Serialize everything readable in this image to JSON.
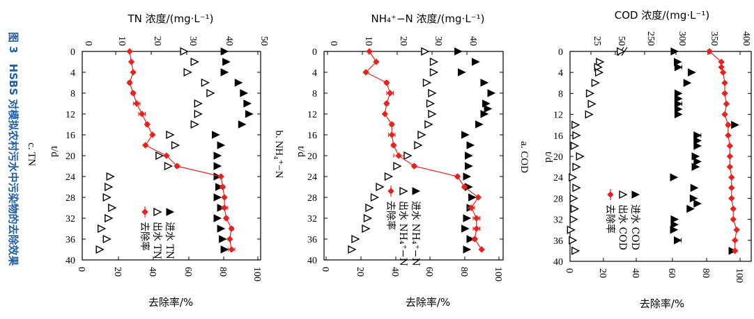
{
  "figure": {
    "caption": "图 3　HSBS 对模拟农村污水中污染物的去除效果"
  },
  "chart_data": [
    {
      "type": "line",
      "panel": "a. COD",
      "x_label": "t/d",
      "y_top_label": "COD 浓度/(mg·L⁻¹)",
      "y_bottom_label": "去除率/%",
      "x_ticks": [
        0,
        4,
        8,
        12,
        16,
        20,
        24,
        28,
        32,
        36,
        40
      ],
      "top_ticks": [
        "25",
        "50",
        "250",
        "300",
        "350",
        "400"
      ],
      "bottom_ticks": [
        "0",
        "20",
        "40",
        "60",
        "80",
        "100"
      ],
      "xlim": [
        0,
        40
      ],
      "removal_lim": [
        0,
        100
      ],
      "top_axis_break": true,
      "legend": [
        "进水 COD",
        "出水 COD",
        "去除率"
      ],
      "series": [
        {
          "name": "进水 COD",
          "marker": "filled-triangle",
          "x": [
            0,
            2,
            3,
            4,
            6,
            8,
            9,
            10,
            11,
            12,
            14,
            16,
            17,
            18,
            20,
            21,
            22,
            24,
            26,
            28,
            29,
            30,
            32,
            33,
            34,
            36,
            38
          ],
          "y": [
            297,
            302,
            303,
            324,
            317,
            303,
            303,
            303,
            303,
            303,
            392,
            333,
            333,
            333,
            330,
            333,
            330,
            296,
            328,
            327,
            333,
            322,
            297,
            297,
            296,
            302,
            388
          ]
        },
        {
          "name": "出水 COD",
          "marker": "open-triangle",
          "x": [
            0,
            2,
            3,
            4,
            6,
            8,
            10,
            12,
            14,
            16,
            18,
            20,
            22,
            24,
            26,
            28,
            30,
            32,
            34,
            36,
            38
          ],
          "y": [
            56,
            33,
            31,
            32,
            28,
            22,
            24,
            21,
            6,
            7,
            5,
            11,
            7,
            3,
            7,
            4,
            5,
            4,
            1,
            3,
            6
          ]
        },
        {
          "name": "去除率",
          "marker": "filled-diamond",
          "x": [
            0,
            2,
            3,
            4,
            6,
            8,
            10,
            12,
            14,
            16,
            18,
            20,
            22,
            24,
            26,
            28,
            30,
            32,
            34,
            36,
            38
          ],
          "y": [
            82,
            89,
            89,
            90,
            91,
            91,
            92,
            91,
            93,
            93,
            94,
            94,
            94,
            95,
            95,
            95,
            96,
            96,
            98,
            97,
            97
          ],
          "err": [
            1,
            0,
            0,
            0,
            0,
            0,
            0,
            0,
            1,
            0,
            0,
            0,
            0,
            0,
            0,
            0,
            0,
            0,
            0,
            0,
            0
          ]
        }
      ]
    },
    {
      "type": "line",
      "panel": "b. NH₄⁺−N",
      "x_label": "t/d",
      "y_top_label": "NH₄⁺−N 浓度/(mg·L⁻¹)",
      "y_bottom_label": "去除率/%",
      "x_ticks": [
        0,
        4,
        8,
        12,
        16,
        20,
        24,
        28,
        32,
        36,
        40
      ],
      "top_ticks": [
        "0",
        "10",
        "20",
        "30",
        "40"
      ],
      "bottom_ticks": [
        "0",
        "20",
        "40",
        "60",
        "80",
        "100"
      ],
      "xlim": [
        0,
        40
      ],
      "top_lim": [
        0,
        48
      ],
      "removal_lim": [
        0,
        100
      ],
      "legend": [
        "进水 NH₄⁺−N",
        "出水 NH₄⁺−N",
        "去除率"
      ],
      "series": [
        {
          "name": "进水 NH₄⁺−N",
          "marker": "filled-triangle",
          "x": [
            0,
            2,
            4,
            6,
            8,
            10,
            11,
            12,
            14,
            16,
            18,
            20,
            22,
            24,
            26,
            28,
            30,
            32,
            34,
            36,
            38
          ],
          "y": [
            37.5,
            42.5,
            38.5,
            45,
            47,
            45.5,
            46,
            45,
            43.5,
            39.5,
            41,
            40.5,
            40.5,
            40,
            40.5,
            41.5,
            41,
            40,
            39.5,
            41,
            40
          ]
        },
        {
          "name": "出水 NH₄⁺−N",
          "marker": "open-triangle",
          "x": [
            0,
            2,
            4,
            6,
            8,
            10,
            12,
            14,
            16,
            18,
            20,
            22,
            24,
            26,
            28,
            30,
            32,
            34,
            36,
            38
          ],
          "y": [
            28,
            30.5,
            30.5,
            28.5,
            30,
            29.5,
            30,
            29,
            27,
            26,
            23,
            20,
            17.5,
            15,
            13.5,
            12,
            11.5,
            11,
            8,
            7
          ]
        },
        {
          "name": "去除率",
          "marker": "filled-diamond",
          "x": [
            0,
            2,
            4,
            6,
            8,
            10,
            12,
            14,
            16,
            18,
            20,
            22,
            24,
            26,
            28,
            30,
            32,
            34,
            36,
            38
          ],
          "y": [
            25,
            29,
            23,
            35,
            37,
            35,
            34,
            38,
            38,
            39,
            42,
            51,
            76,
            80,
            88,
            84,
            87,
            87,
            86,
            90
          ],
          "err": [
            0,
            0,
            0,
            1,
            2,
            1,
            0,
            1,
            2,
            1,
            3,
            1,
            1,
            1,
            0,
            2,
            2,
            2,
            1,
            0
          ]
        }
      ]
    },
    {
      "type": "line",
      "panel": "c. TN",
      "x_label": "t/d",
      "y_top_label": "TN 浓度/(mg·L⁻¹)",
      "y_bottom_label": "去除率/%",
      "x_ticks": [
        0,
        4,
        8,
        12,
        16,
        20,
        24,
        28,
        32,
        36,
        40
      ],
      "top_ticks": [
        "0",
        "10",
        "20",
        "30",
        "40",
        "50"
      ],
      "bottom_ticks": [
        "0",
        "20",
        "40",
        "60",
        "80",
        "100"
      ],
      "xlim": [
        0,
        40
      ],
      "top_lim": [
        0,
        52
      ],
      "removal_lim": [
        0,
        100
      ],
      "legend": [
        "进水 TN",
        "出水 TN",
        "去除率"
      ],
      "series": [
        {
          "name": "进水 TN",
          "marker": "filled-triangle",
          "x": [
            0,
            2,
            4,
            6,
            8,
            10,
            12,
            14,
            16,
            18,
            20,
            22,
            24,
            26,
            28,
            30,
            32,
            34,
            36,
            38
          ],
          "y": [
            40.5,
            41,
            40.5,
            44.5,
            46,
            47,
            47.5,
            45.5,
            38,
            39.5,
            38.5,
            38.5,
            38.5,
            39,
            38.5,
            39.5,
            38.5,
            39.5,
            40,
            40.5
          ]
        },
        {
          "name": "出水 TN",
          "marker": "open-triangle",
          "x": [
            0,
            2,
            4,
            6,
            8,
            10,
            12,
            14,
            16,
            18,
            20,
            22,
            24,
            26,
            28,
            30,
            32,
            34,
            36,
            38
          ],
          "y": [
            29,
            32,
            30,
            35,
            36.5,
            33,
            33,
            32,
            25,
            26.5,
            22,
            24.5,
            8,
            7.5,
            7,
            8.5,
            7.5,
            5.5,
            7,
            5
          ]
        },
        {
          "name": "去除率",
          "marker": "filled-diamond",
          "x": [
            0,
            2,
            4,
            6,
            8,
            10,
            12,
            14,
            16,
            18,
            20,
            22,
            24,
            26,
            28,
            30,
            32,
            34,
            36,
            38
          ],
          "y": [
            27,
            28,
            29,
            27,
            29,
            31,
            34,
            37,
            40,
            36,
            48,
            54,
            79,
            80,
            81,
            81,
            82,
            85,
            84,
            85
          ],
          "err": [
            0,
            0,
            0,
            1,
            1,
            2,
            2,
            1,
            0,
            0,
            0,
            1,
            0,
            1,
            0,
            2,
            1,
            1,
            0,
            2
          ]
        }
      ]
    }
  ],
  "colors": {
    "removal": "#e8221c",
    "markers": "#000000",
    "caption": "#1f5fa8"
  }
}
